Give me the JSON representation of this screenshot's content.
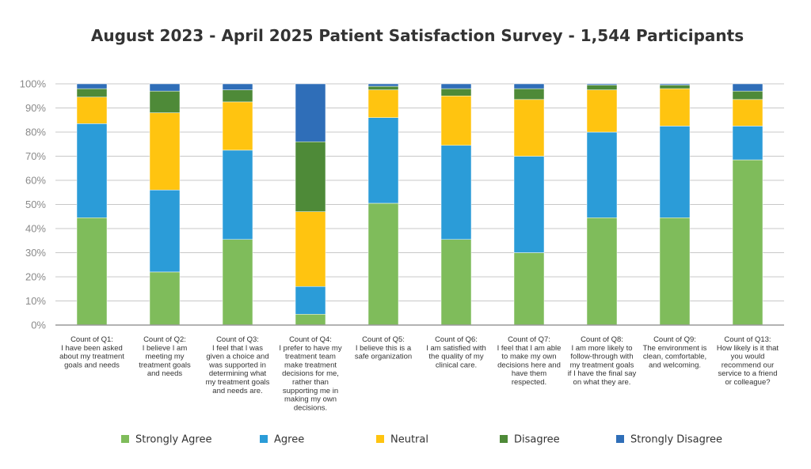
{
  "chart_data": {
    "type": "bar",
    "stacked": true,
    "percent": true,
    "title": "August 2023 - April 2025 Patient Satisfaction Survey - 1,544 Participants",
    "xlabel": "",
    "ylabel": "",
    "ylim": [
      0,
      100
    ],
    "yticks": [
      "0%",
      "10%",
      "20%",
      "30%",
      "40%",
      "50%",
      "60%",
      "70%",
      "80%",
      "90%",
      "100%"
    ],
    "legend_position": "bottom",
    "categories": [
      [
        "Count of Q1:",
        "I have been asked",
        "about my treatment",
        "goals and needs"
      ],
      [
        "Count of Q2:",
        "I believe I am",
        "meeting my",
        "treatment goals",
        "and needs"
      ],
      [
        "Count of Q3:",
        "I feel that I was",
        "given a choice and",
        "was supported in",
        "determining what",
        "my treatment goals",
        "and needs are."
      ],
      [
        "Count of Q4:",
        "I prefer to have my",
        "treatment team",
        "make treatment",
        "decisions for me,",
        "rather than",
        "supporting me in",
        "making my own",
        "decisions."
      ],
      [
        "Count of Q5:",
        "I believe this is a",
        "safe organization"
      ],
      [
        "Count of Q6:",
        "I am satisfied with",
        "the quality of my",
        "clinical care."
      ],
      [
        "Count of Q7:",
        "I feel that I am able",
        "to make my own",
        "decisions here and",
        "have them",
        "respected."
      ],
      [
        "Count of Q8:",
        "I am more likely to",
        "follow-through with",
        "my treatment goals",
        "if I have the final say",
        "on what they are."
      ],
      [
        "Count of Q9:",
        "The environment is",
        "clean, comfortable,",
        "and welcoming."
      ],
      [
        "Count of Q13:",
        "How likely is it that",
        "you would",
        "recommend our",
        "service to a friend",
        "or colleague?"
      ]
    ],
    "series": [
      {
        "name": "Strongly Agree",
        "color": "#7fbc5b",
        "values": [
          44.5,
          22,
          35.5,
          4.5,
          50.5,
          35.5,
          30,
          44.5,
          44.5,
          68.5
        ]
      },
      {
        "name": "Agree",
        "color": "#2b9cd8",
        "values": [
          39,
          34,
          37,
          11.5,
          35.5,
          39,
          40,
          35.5,
          38,
          14
        ]
      },
      {
        "name": "Neutral",
        "color": "#ffc410",
        "values": [
          11,
          32,
          20,
          31,
          11.5,
          20.5,
          23.5,
          17.5,
          15.5,
          11
        ]
      },
      {
        "name": "Disagree",
        "color": "#4e8a38",
        "values": [
          3.5,
          9,
          5,
          29,
          1.5,
          3,
          4.5,
          2,
          1.5,
          3.5
        ]
      },
      {
        "name": "Strongly Disagree",
        "color": "#2f6eb8",
        "values": [
          2,
          3,
          2.5,
          24,
          1,
          2,
          2,
          0.5,
          0.5,
          3
        ]
      }
    ]
  }
}
